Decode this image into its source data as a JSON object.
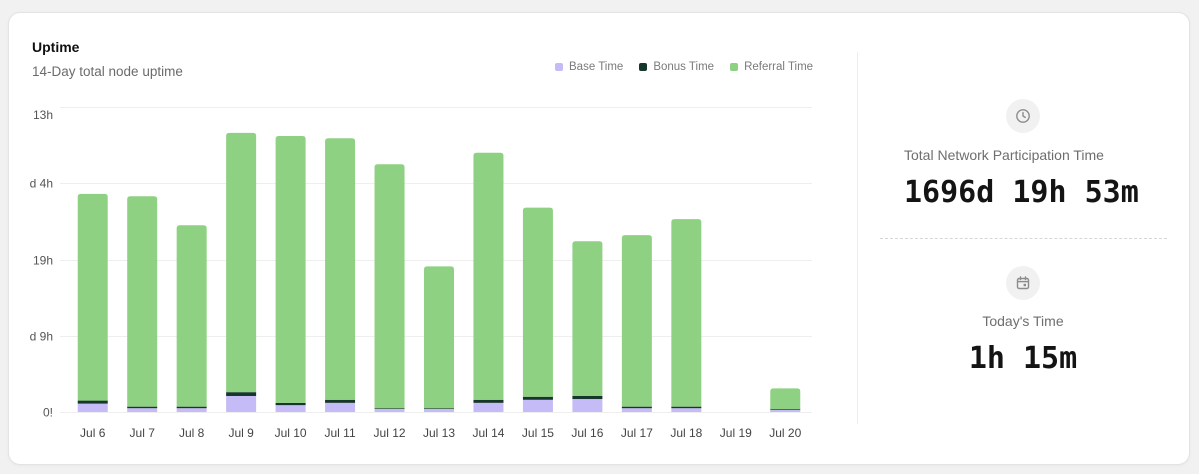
{
  "chart_data": {
    "type": "bar",
    "stacked": true,
    "title": "Uptime",
    "subtitle": "14-Day total node uptime",
    "categories": [
      "Jul 6",
      "Jul 7",
      "Jul 8",
      "Jul 9",
      "Jul 10",
      "Jul 11",
      "Jul 12",
      "Jul 13",
      "Jul 14",
      "Jul 15",
      "Jul 16",
      "Jul 17",
      "Jul 18",
      "Jul 19",
      "Jul 20"
    ],
    "series": [
      {
        "name": "Base Time",
        "color": "#c5bbf6",
        "values": [
          0.11,
          0.05,
          0.05,
          0.21,
          0.09,
          0.12,
          0.04,
          0.04,
          0.12,
          0.16,
          0.17,
          0.05,
          0.05,
          0,
          0.03
        ]
      },
      {
        "name": "Bonus Time",
        "color": "#17362c",
        "values": [
          0.04,
          0.02,
          0.02,
          0.05,
          0.03,
          0.04,
          0.01,
          0.01,
          0.04,
          0.04,
          0.04,
          0.02,
          0.02,
          0,
          0.01
        ]
      },
      {
        "name": "Referral Time",
        "color": "#8ed182",
        "values": [
          2.71,
          2.76,
          2.38,
          3.4,
          3.5,
          3.43,
          3.2,
          1.86,
          3.24,
          2.48,
          2.03,
          2.25,
          2.46,
          0,
          0.27
        ]
      }
    ],
    "y_ticks": [
      {
        "value": 0,
        "label": "0!"
      },
      {
        "value": 1,
        "label": "d 9h"
      },
      {
        "value": 2,
        "label": "19h"
      },
      {
        "value": 3,
        "label": "d 4h"
      },
      {
        "value": 4,
        "label": "13h"
      }
    ],
    "ylim": [
      0,
      4
    ],
    "grid": true,
    "legend": "top-right"
  },
  "stats": {
    "total_participation": {
      "icon": "clock-icon",
      "label": "Total Network Participation Time",
      "value": "1696d 19h 53m"
    },
    "today": {
      "icon": "calendar-icon",
      "label": "Today's Time",
      "value": "1h 15m"
    }
  }
}
